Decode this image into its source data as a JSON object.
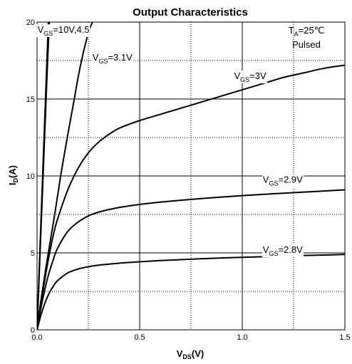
{
  "chart_data": {
    "type": "line",
    "title": "Output Characteristics",
    "xlabel": {
      "main": "V",
      "sub": "DS",
      "suffix": "(V)"
    },
    "ylabel": {
      "main": "I",
      "sub": "D",
      "suffix": "(A)"
    },
    "xlim": [
      0,
      1.5
    ],
    "ylim": [
      0,
      20
    ],
    "x_ticks": [
      {
        "value": 0,
        "label": "0.0"
      },
      {
        "value": 0.5,
        "label": "0.5"
      },
      {
        "value": 1.0,
        "label": "1.0"
      },
      {
        "value": 1.5,
        "label": "1.5"
      }
    ],
    "y_ticks": [
      {
        "value": 0,
        "label": "0"
      },
      {
        "value": 5,
        "label": "5"
      },
      {
        "value": 10,
        "label": "10"
      },
      {
        "value": 15,
        "label": "15"
      },
      {
        "value": 20,
        "label": "20"
      }
    ],
    "grid": {
      "major": true,
      "minor_dotted": true,
      "minor_x": [
        0.25,
        0.75,
        1.25
      ],
      "minor_y": [
        2.5,
        7.5,
        12.5,
        17.5
      ]
    },
    "annotation": {
      "line1_main": "T",
      "line1_sub": "A",
      "line1_rest": "=25℃",
      "line2": "Pulsed"
    },
    "series": [
      {
        "label_main": "V",
        "label_sub": "GS",
        "label_rest": "=10V,4.5",
        "label_at": [
          0.002,
          19.3
        ],
        "x": [
          0,
          0.01,
          0.02,
          0.03,
          0.04,
          0.05,
          0.06
        ],
        "y": [
          0,
          3.4,
          6.8,
          10.2,
          13.6,
          17.0,
          20.0
        ]
      },
      {
        "label_main": "V",
        "label_sub": "GS",
        "label_rest": "=10V,4.5",
        "label_at": null,
        "x": [
          0,
          0.01,
          0.02,
          0.03,
          0.04,
          0.05,
          0.055
        ],
        "y": [
          0,
          3.7,
          7.4,
          11.0,
          14.6,
          18.2,
          20.0
        ]
      },
      {
        "label_main": "V",
        "label_sub": "GS",
        "label_rest": "=3.1V",
        "label_at": [
          0.27,
          17.5
        ],
        "x": [
          0,
          0.02,
          0.05,
          0.08,
          0.1,
          0.12,
          0.15,
          0.18,
          0.2,
          0.22,
          0.25,
          0.27,
          0.29
        ],
        "y": [
          0,
          2.0,
          4.6,
          7.0,
          8.7,
          10.4,
          12.7,
          14.9,
          16.4,
          17.7,
          19.3,
          20.0,
          20.6
        ]
      },
      {
        "label_main": "V",
        "label_sub": "GS",
        "label_rest": "=3V",
        "label_at": [
          0.96,
          16.3
        ],
        "x": [
          0,
          0.02,
          0.05,
          0.08,
          0.1,
          0.15,
          0.2,
          0.25,
          0.3,
          0.35,
          0.4,
          0.5,
          0.6,
          0.7,
          0.8,
          0.9,
          1.0,
          1.1,
          1.2,
          1.3,
          1.4,
          1.5
        ],
        "y": [
          0,
          1.8,
          4.2,
          6.2,
          7.2,
          9.1,
          10.5,
          11.5,
          12.2,
          12.7,
          13.1,
          13.6,
          14.0,
          14.4,
          14.8,
          15.2,
          15.6,
          16.0,
          16.4,
          16.7,
          17.0,
          17.2
        ]
      },
      {
        "label_main": "V",
        "label_sub": "GS",
        "label_rest": "=2.9V",
        "label_at": [
          1.1,
          9.55
        ],
        "x": [
          0,
          0.02,
          0.05,
          0.08,
          0.1,
          0.15,
          0.2,
          0.25,
          0.3,
          0.4,
          0.5,
          0.6,
          0.7,
          0.8,
          0.9,
          1.0,
          1.1,
          1.2,
          1.3,
          1.4,
          1.5
        ],
        "y": [
          0,
          1.5,
          3.3,
          4.6,
          5.3,
          6.4,
          7.0,
          7.4,
          7.65,
          7.95,
          8.15,
          8.3,
          8.42,
          8.53,
          8.63,
          8.72,
          8.8,
          8.88,
          8.95,
          9.02,
          9.1
        ]
      },
      {
        "label_main": "V",
        "label_sub": "GS",
        "label_rest": "=2.8V",
        "label_at": [
          1.1,
          5.0
        ],
        "x": [
          0,
          0.02,
          0.04,
          0.06,
          0.08,
          0.1,
          0.15,
          0.2,
          0.25,
          0.3,
          0.4,
          0.5,
          0.6,
          0.7,
          0.8,
          0.9,
          1.0,
          1.1,
          1.2,
          1.3,
          1.4,
          1.5
        ],
        "y": [
          0,
          1.0,
          1.8,
          2.4,
          2.85,
          3.2,
          3.7,
          3.95,
          4.1,
          4.2,
          4.33,
          4.42,
          4.5,
          4.56,
          4.62,
          4.67,
          4.71,
          4.75,
          4.79,
          4.83,
          4.86,
          4.9
        ]
      }
    ]
  }
}
